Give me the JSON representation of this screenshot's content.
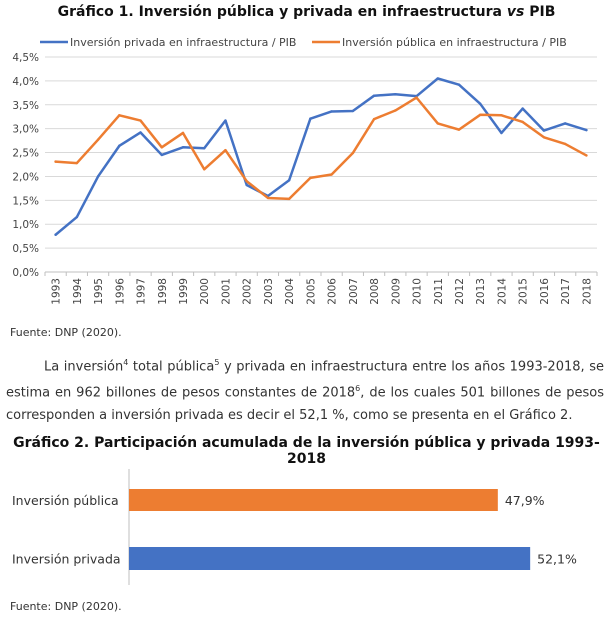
{
  "chart1": {
    "title_prefix": "Gráfico 1. Inversión pública y privada en infraestructura",
    "title_vs": "vs",
    "title_suffix": "PIB",
    "source": "Fuente: DNP (2020).",
    "colors": {
      "private": "#4472C4",
      "public": "#ED7D31",
      "grid": "#d9d9d9",
      "axis": "#bfbfbf"
    }
  },
  "paragraph": {
    "part1": "La inversión",
    "sup1": "4",
    "part2": " total pública",
    "sup2": "5",
    "part3": " y privada en infraestructura entre los años 1993-2018, se estima en 962 billones de pesos constantes de 2018",
    "sup3": "6",
    "part4": ", de los cuales 501 billones de pesos corresponden a inversión privada es decir el 52,1 %, como se presenta en el Gráfico 2."
  },
  "chart2": {
    "title": "Gráfico 2. Participación acumulada de la inversión pública y privada 1993-2018",
    "source": "Fuente: DNP (2020)."
  },
  "chart_data": [
    {
      "type": "line",
      "x": [
        "1993",
        "1994",
        "1995",
        "1996",
        "1997",
        "1998",
        "1999",
        "2000",
        "2001",
        "2002",
        "2003",
        "2004",
        "2005",
        "2006",
        "2007",
        "2008",
        "2009",
        "2010",
        "2011",
        "2012",
        "2013",
        "2014",
        "2015",
        "2016",
        "2017",
        "2018"
      ],
      "series": [
        {
          "name": "Inversión privada en infraestructura / PIB",
          "color": "#4472C4",
          "values": [
            0.78,
            1.15,
            2.0,
            2.64,
            2.92,
            2.45,
            2.61,
            2.59,
            3.17,
            1.82,
            1.59,
            1.92,
            3.21,
            3.36,
            3.37,
            3.69,
            3.72,
            3.68,
            4.05,
            3.92,
            3.52,
            2.91,
            3.42,
            2.96,
            3.11,
            2.97
          ]
        },
        {
          "name": "Inversión pública en infraestructura / PIB",
          "color": "#ED7D31",
          "values": [
            2.31,
            2.28,
            2.77,
            3.28,
            3.17,
            2.61,
            2.91,
            2.15,
            2.55,
            1.9,
            1.55,
            1.53,
            1.97,
            2.04,
            2.49,
            3.2,
            3.38,
            3.65,
            3.11,
            2.98,
            3.29,
            3.28,
            3.14,
            2.82,
            2.68,
            2.44
          ]
        }
      ],
      "y_ticks": [
        "0,0%",
        "0,5%",
        "1,0%",
        "1,5%",
        "2,0%",
        "2,5%",
        "3,0%",
        "3,5%",
        "4,0%",
        "4,5%"
      ],
      "ylim": [
        0,
        4.5
      ],
      "grid": true,
      "legend": "top"
    },
    {
      "type": "bar",
      "orientation": "horizontal",
      "categories": [
        "Inversión pública",
        "Inversión privada"
      ],
      "values": [
        47.9,
        52.1
      ],
      "value_labels": [
        "47,9%",
        "52,1%"
      ],
      "colors": [
        "#ED7D31",
        "#4472C4"
      ],
      "xlim": [
        0,
        100
      ]
    }
  ]
}
